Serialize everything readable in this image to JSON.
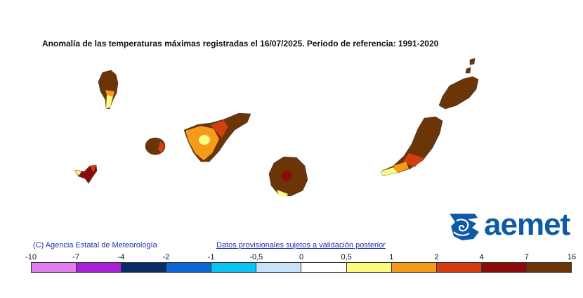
{
  "map": {
    "title": "Anomalía de las temperaturas máximas registradas el 16/07/2025. Periodo de referencia: 1991-2020",
    "credit_left": "(C) Agencia Estatal de Meteorología",
    "credit_right": "Datos provisionales sujetos a validación posterior",
    "logo_text": "aemet",
    "logo_color": "#0d5aa7"
  },
  "legend": {
    "ticks": [
      "-10",
      "-7",
      "-4",
      "-2",
      "-1",
      "-0,5",
      "0",
      "0,5",
      "1",
      "2",
      "4",
      "7",
      "16"
    ],
    "colors": [
      "#e17ff0",
      "#a820d6",
      "#0c2c66",
      "#0c65d6",
      "#0bc3f2",
      "#c6e3f8",
      "#ffffff",
      "#fbfb80",
      "#f79a1c",
      "#d33d0f",
      "#8b0a0a",
      "#6b3507"
    ]
  },
  "islands": [
    {
      "name": "La Palma"
    },
    {
      "name": "La Gomera"
    },
    {
      "name": "El Hierro"
    },
    {
      "name": "Tenerife"
    },
    {
      "name": "Gran Canaria"
    },
    {
      "name": "Fuerteventura"
    },
    {
      "name": "Lanzarote"
    }
  ]
}
